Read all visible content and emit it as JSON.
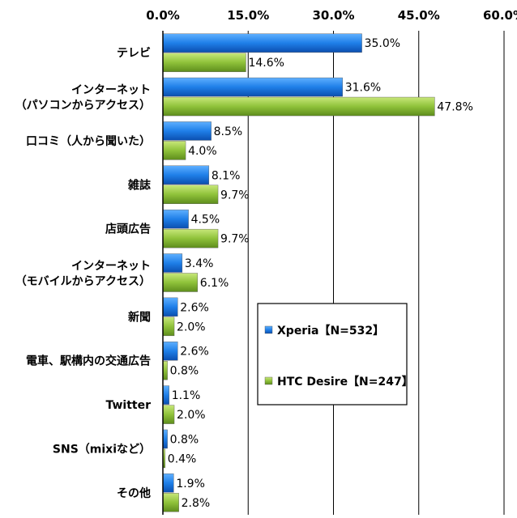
{
  "chart_data": {
    "type": "bar",
    "orientation": "horizontal",
    "title": "",
    "xlabel": "",
    "ylabel": "",
    "xlim": [
      0,
      60
    ],
    "ticks": [
      "0.0%",
      "15.0%",
      "30.0%",
      "45.0%",
      "60.0%"
    ],
    "grid": true,
    "legend_position": "right",
    "categories": [
      [
        "テレビ"
      ],
      [
        "インターネット",
        "（パソコンからアクセス）"
      ],
      [
        "口コミ（人から聞いた）"
      ],
      [
        "雑誌"
      ],
      [
        "店頭広告"
      ],
      [
        "インターネット",
        "（モバイルからアクセス）"
      ],
      [
        "新聞"
      ],
      [
        "電車、駅構内の交通広告"
      ],
      [
        "Twitter"
      ],
      [
        "SNS（mixiなど）"
      ],
      [
        "その他"
      ]
    ],
    "series": [
      {
        "name": "Xperia【N=532】",
        "color": "#1f7fe8",
        "values": [
          35.0,
          31.6,
          8.5,
          8.1,
          4.5,
          3.4,
          2.6,
          2.6,
          1.1,
          0.8,
          1.9
        ],
        "labels": [
          "35.0%",
          "31.6%",
          "8.5%",
          "8.1%",
          "4.5%",
          "3.4%",
          "2.6%",
          "2.6%",
          "1.1%",
          "0.8%",
          "1.9%"
        ]
      },
      {
        "name": "HTC Desire【N=247】",
        "color": "#8fc23a",
        "values": [
          14.6,
          47.8,
          4.0,
          9.7,
          9.7,
          6.1,
          2.0,
          0.8,
          2.0,
          0.4,
          2.8
        ],
        "labels": [
          "14.6%",
          "47.8%",
          "4.0%",
          "9.7%",
          "9.7%",
          "6.1%",
          "2.0%",
          "0.8%",
          "2.0%",
          "0.4%",
          "2.8%"
        ]
      }
    ]
  }
}
